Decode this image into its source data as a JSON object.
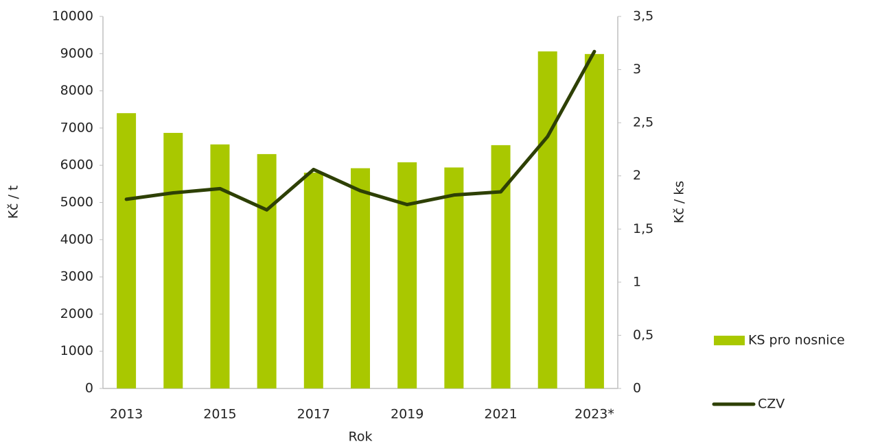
{
  "chart_data": {
    "type": "bar-line",
    "x_label": "Rok",
    "y_label": "Kč / t",
    "y2_label": "Kč / ks",
    "categories": [
      "2013",
      null,
      "2015",
      null,
      "2017",
      null,
      "2019",
      null,
      "2021",
      null,
      "2023*"
    ],
    "series": [
      {
        "name": "KS pro nosnice",
        "type": "bar",
        "color": "#a9c800",
        "values": [
          7400,
          6870,
          6560,
          6300,
          5800,
          5920,
          6080,
          5940,
          6540,
          9060,
          8990
        ]
      },
      {
        "name": "CZV",
        "type": "line",
        "axis": "y2",
        "color": "#2e4005",
        "values": [
          1.78,
          1.84,
          1.88,
          1.68,
          2.06,
          1.86,
          1.73,
          1.82,
          1.85,
          2.37,
          3.17
        ]
      }
    ],
    "ylim": [
      0,
      10000
    ],
    "yticks": [
      0,
      1000,
      2000,
      3000,
      4000,
      5000,
      6000,
      7000,
      8000,
      9000,
      10000
    ],
    "y2lim": [
      0,
      3.5
    ],
    "y2ticks": [
      0,
      {
        "value": 0.5,
        "label": "0,5"
      },
      1,
      {
        "value": 1.5,
        "label": "1,5"
      },
      2,
      {
        "value": 2.5,
        "label": "2,5"
      },
      3,
      {
        "value": 3.5,
        "label": "3,5"
      }
    ],
    "grid": false
  }
}
